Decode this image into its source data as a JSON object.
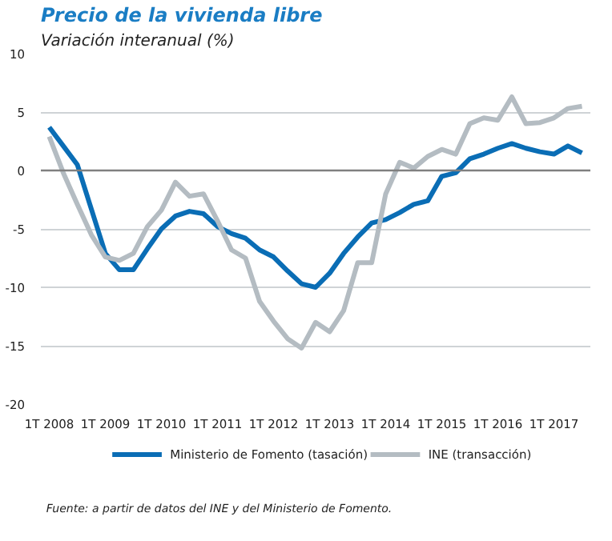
{
  "chart_data": {
    "type": "line",
    "title": "Precio de la vivienda libre",
    "subtitle": "Variación interanual (%)",
    "categories": [
      "1T 2008",
      null,
      null,
      null,
      "1T 2009",
      null,
      null,
      null,
      "1T 2010",
      null,
      null,
      null,
      "1T 2011",
      null,
      null,
      null,
      "1T 2012",
      null,
      null,
      null,
      "1T 2013",
      null,
      null,
      null,
      "1T 2014",
      null,
      null,
      null,
      "1T 2015",
      null,
      null,
      null,
      "1T 2016",
      null,
      null,
      null,
      "1T 2017",
      null,
      null
    ],
    "series": [
      {
        "name": "Ministerio de Fomento (tasación)",
        "color": "#0a6db5",
        "values": [
          3.7,
          2.1,
          0.5,
          -3.3,
          -7.1,
          -8.5,
          -8.5,
          -6.7,
          -5.0,
          -3.9,
          -3.5,
          -3.7,
          -4.8,
          -5.4,
          -5.8,
          -6.8,
          -7.4,
          -8.6,
          -9.7,
          -10.0,
          -8.8,
          -7.1,
          -5.7,
          -4.5,
          -4.2,
          -3.6,
          -2.9,
          -2.6,
          -0.5,
          -0.2,
          1.0,
          1.4,
          1.9,
          2.3,
          1.9,
          1.6,
          1.4,
          2.1,
          1.5
        ]
      },
      {
        "name": "INE (transacción)",
        "color": "#b4bcc2",
        "values": [
          2.9,
          -0.2,
          -2.9,
          -5.5,
          -7.4,
          -7.7,
          -7.1,
          -4.8,
          -3.4,
          -1.0,
          -2.2,
          -2.0,
          -4.3,
          -6.8,
          -7.5,
          -11.2,
          -12.9,
          -14.4,
          -15.2,
          -13.0,
          -13.8,
          -12.0,
          -7.9,
          -7.9,
          -2.0,
          0.7,
          0.2,
          1.2,
          1.8,
          1.4,
          4.0,
          4.5,
          4.3,
          6.3,
          4.0,
          4.1,
          4.5,
          5.3,
          5.5
        ]
      }
    ],
    "ylim": [
      -20,
      10
    ],
    "yticks": [
      -20,
      -15,
      -10,
      -5,
      0,
      5,
      10
    ],
    "grid": "y",
    "legend": "bottom",
    "line_style": "solid",
    "ref_lines": [
      {
        "axis": "y",
        "value": 0,
        "color": "#808080"
      }
    ],
    "annotations": [
      "Fuente: a partir de datos del INE y del Ministerio de Fomento."
    ]
  }
}
